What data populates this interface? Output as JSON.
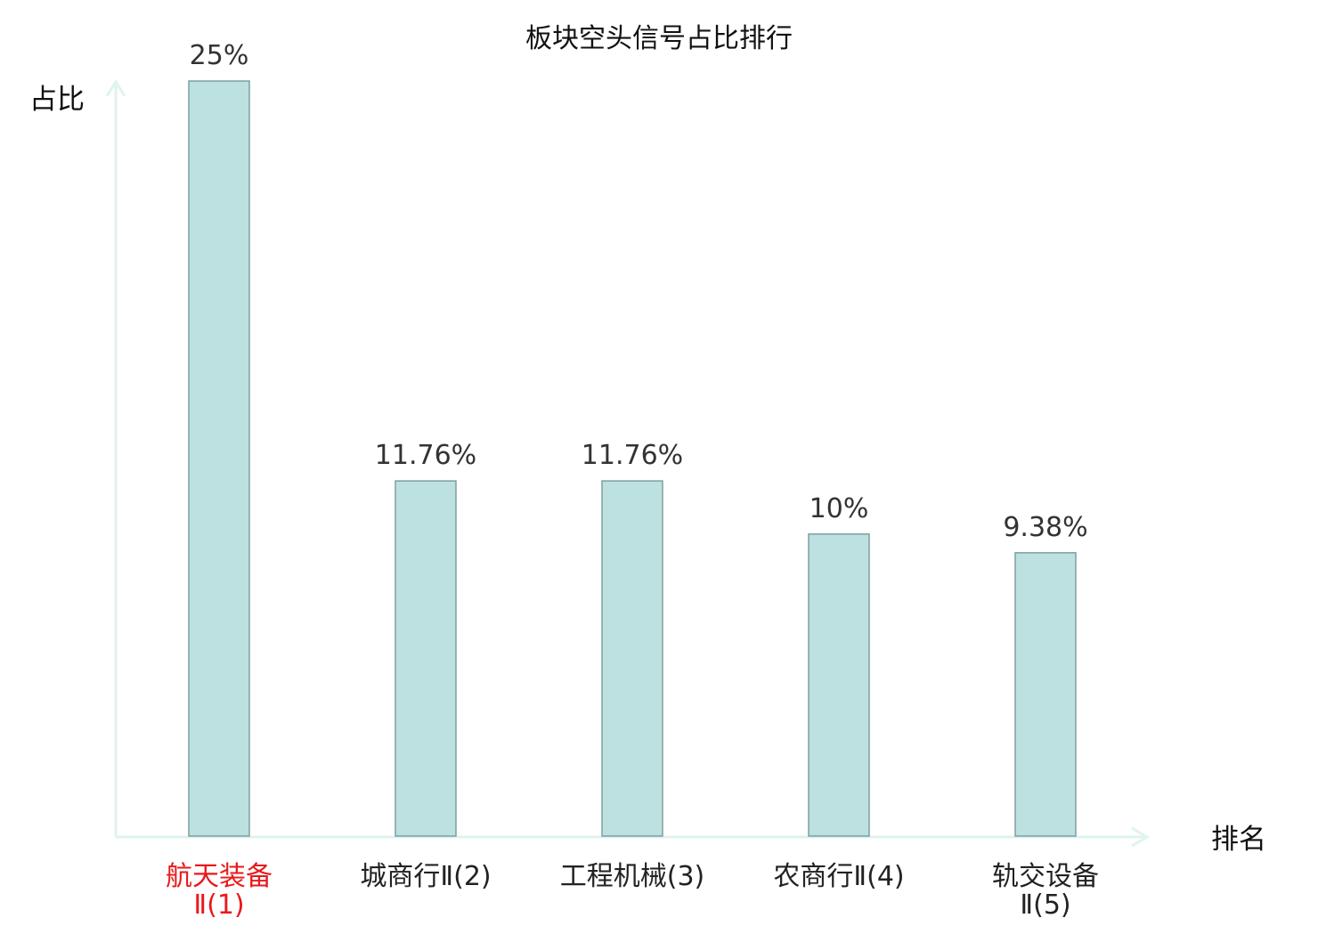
{
  "chart_data": {
    "type": "bar",
    "title": "板块空头信号占比排行",
    "ylabel": "占比",
    "xlabel": "排名",
    "categories": [
      [
        "航天装备",
        "Ⅱ(1)"
      ],
      [
        "城商行Ⅱ(2)"
      ],
      [
        "工程机械(3)"
      ],
      [
        "农商行Ⅱ(4)"
      ],
      [
        "轨交设备",
        "Ⅱ(5)"
      ]
    ],
    "values": [
      25,
      11.76,
      11.76,
      10,
      9.38
    ],
    "value_labels": [
      "25%",
      "11.76%",
      "11.76%",
      "10%",
      "9.38%"
    ],
    "highlight_index": 0,
    "ylim": [
      0,
      25
    ],
    "grid": false,
    "colors": {
      "bar_fill": "#bde0e1",
      "bar_stroke": "#7f9fa0",
      "axis": "#dff3ef",
      "highlight_text": "#e8191b"
    }
  }
}
